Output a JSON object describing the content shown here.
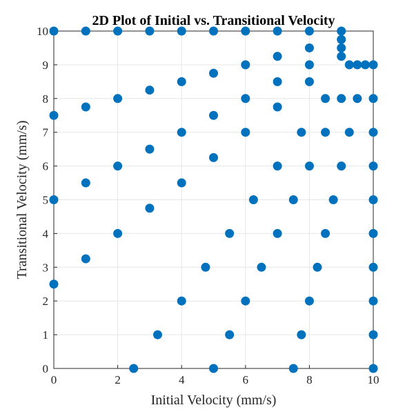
{
  "chart_data": {
    "type": "scatter",
    "title": "2D Plot of Initial vs. Transitional Velocity",
    "xlabel": "Initial Velocity (mm/s)",
    "ylabel": "Transitional Velocity (mm/s)",
    "xlim": [
      0,
      10
    ],
    "ylim": [
      0,
      10
    ],
    "xticks": [
      "0",
      "2",
      "4",
      "6",
      "8",
      "10"
    ],
    "yticks": [
      "0",
      "1",
      "2",
      "3",
      "4",
      "5",
      "6",
      "7",
      "8",
      "9",
      "10"
    ],
    "grid": true,
    "marker_color": "#0072BD",
    "points": [
      [
        0,
        10
      ],
      [
        1,
        10
      ],
      [
        2,
        10
      ],
      [
        3,
        10
      ],
      [
        4,
        10
      ],
      [
        5,
        10
      ],
      [
        6,
        10
      ],
      [
        7,
        10
      ],
      [
        8,
        10
      ],
      [
        9,
        10
      ],
      [
        9,
        9.75
      ],
      [
        9,
        9.5
      ],
      [
        9,
        9.25
      ],
      [
        8,
        9.5
      ],
      [
        7,
        9.25
      ],
      [
        6,
        9
      ],
      [
        8,
        9
      ],
      [
        9.25,
        9
      ],
      [
        9.5,
        9
      ],
      [
        9.75,
        9
      ],
      [
        10,
        9
      ],
      [
        5,
        8.75
      ],
      [
        7,
        8.5
      ],
      [
        8,
        8.5
      ],
      [
        4,
        8.5
      ],
      [
        3,
        8.25
      ],
      [
        2,
        8
      ],
      [
        6,
        8
      ],
      [
        8.5,
        8
      ],
      [
        9,
        8
      ],
      [
        9.5,
        8
      ],
      [
        10,
        8
      ],
      [
        1,
        7.75
      ],
      [
        7,
        7.75
      ],
      [
        5,
        7.5
      ],
      [
        0,
        7.5
      ],
      [
        4,
        7
      ],
      [
        6,
        7
      ],
      [
        7.75,
        7
      ],
      [
        8.5,
        7
      ],
      [
        9.25,
        7
      ],
      [
        10,
        7
      ],
      [
        3,
        6.5
      ],
      [
        5,
        6.25
      ],
      [
        2,
        6
      ],
      [
        7,
        6
      ],
      [
        8,
        6
      ],
      [
        9,
        6
      ],
      [
        10,
        6
      ],
      [
        1,
        5.5
      ],
      [
        4,
        5.5
      ],
      [
        0,
        5
      ],
      [
        6.25,
        5
      ],
      [
        7.5,
        5
      ],
      [
        8.75,
        5
      ],
      [
        10,
        5
      ],
      [
        3,
        4.75
      ],
      [
        2,
        4
      ],
      [
        5.5,
        4
      ],
      [
        7,
        4
      ],
      [
        8.5,
        4
      ],
      [
        10,
        4
      ],
      [
        1,
        3.25
      ],
      [
        4.75,
        3
      ],
      [
        6.5,
        3
      ],
      [
        8.25,
        3
      ],
      [
        10,
        3
      ],
      [
        0,
        2.5
      ],
      [
        4,
        2
      ],
      [
        6,
        2
      ],
      [
        8,
        2
      ],
      [
        10,
        2
      ],
      [
        3.25,
        1
      ],
      [
        5.5,
        1
      ],
      [
        7.75,
        1
      ],
      [
        10,
        1
      ],
      [
        2.5,
        0
      ],
      [
        5,
        0
      ],
      [
        7.5,
        0
      ],
      [
        10,
        0
      ]
    ]
  }
}
